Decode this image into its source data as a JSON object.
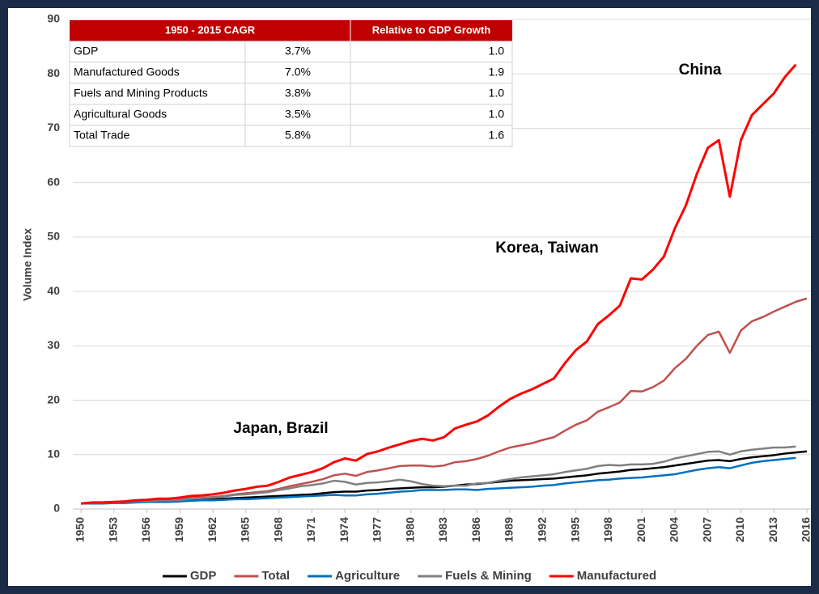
{
  "chart_data": {
    "type": "line",
    "y_label": "Volume Index",
    "x": [
      1950,
      1951,
      1952,
      1953,
      1954,
      1955,
      1956,
      1957,
      1958,
      1959,
      1960,
      1961,
      1962,
      1963,
      1964,
      1965,
      1966,
      1967,
      1968,
      1969,
      1970,
      1971,
      1972,
      1973,
      1974,
      1975,
      1976,
      1977,
      1978,
      1979,
      1980,
      1981,
      1982,
      1983,
      1984,
      1985,
      1986,
      1987,
      1988,
      1989,
      1990,
      1991,
      1992,
      1993,
      1994,
      1995,
      1996,
      1997,
      1998,
      1999,
      2000,
      2001,
      2002,
      2003,
      2004,
      2005,
      2006,
      2007,
      2008,
      2009,
      2010,
      2011,
      2012,
      2013,
      2014,
      2015,
      2016
    ],
    "xlim": [
      1950,
      2016
    ],
    "xticks": [
      1950,
      1953,
      1956,
      1959,
      1962,
      1965,
      1968,
      1971,
      1974,
      1977,
      1980,
      1983,
      1986,
      1989,
      1992,
      1995,
      1998,
      2001,
      2004,
      2007,
      2010,
      2013,
      2016
    ],
    "ylim": [
      0,
      90
    ],
    "yticks": [
      0,
      10,
      20,
      30,
      40,
      50,
      60,
      70,
      80,
      90
    ],
    "grid": true,
    "legend": "bottom",
    "series": [
      {
        "name": "GDP",
        "color": "#000000",
        "values": [
          1.0,
          1.1,
          1.1,
          1.2,
          1.2,
          1.3,
          1.4,
          1.4,
          1.5,
          1.5,
          1.6,
          1.7,
          1.8,
          1.9,
          2.0,
          2.1,
          2.2,
          2.3,
          2.4,
          2.5,
          2.6,
          2.7,
          2.9,
          3.1,
          3.2,
          3.2,
          3.4,
          3.5,
          3.7,
          3.8,
          3.9,
          4.0,
          4.0,
          4.1,
          4.3,
          4.5,
          4.6,
          4.8,
          5.0,
          5.2,
          5.3,
          5.4,
          5.5,
          5.6,
          5.8,
          6.0,
          6.2,
          6.5,
          6.7,
          6.9,
          7.2,
          7.3,
          7.5,
          7.7,
          8.0,
          8.3,
          8.6,
          8.9,
          9.0,
          8.8,
          9.2,
          9.5,
          9.7,
          9.9,
          10.2,
          10.4,
          10.6
        ]
      },
      {
        "name": "Total",
        "color": "#c0504d",
        "values": [
          1.0,
          1.1,
          1.1,
          1.2,
          1.3,
          1.4,
          1.5,
          1.6,
          1.6,
          1.8,
          2.0,
          2.1,
          2.2,
          2.4,
          2.7,
          2.9,
          3.1,
          3.3,
          3.7,
          4.2,
          4.6,
          5.0,
          5.5,
          6.2,
          6.5,
          6.1,
          6.8,
          7.1,
          7.5,
          7.9,
          8.0,
          8.0,
          7.8,
          8.0,
          8.6,
          8.8,
          9.2,
          9.8,
          10.6,
          11.3,
          11.7,
          12.1,
          12.7,
          13.2,
          14.4,
          15.5,
          16.3,
          17.9,
          18.7,
          19.6,
          21.7,
          21.6,
          22.4,
          23.6,
          25.9,
          27.6,
          30.0,
          32.0,
          32.6,
          28.7,
          32.8,
          34.5,
          35.3,
          36.3,
          37.2,
          38.1,
          38.7
        ]
      },
      {
        "name": "Agriculture",
        "color": "#0070c0",
        "values": [
          1.0,
          1.0,
          1.0,
          1.1,
          1.1,
          1.2,
          1.3,
          1.3,
          1.3,
          1.4,
          1.5,
          1.6,
          1.6,
          1.7,
          1.8,
          1.8,
          1.9,
          2.0,
          2.1,
          2.2,
          2.3,
          2.4,
          2.5,
          2.6,
          2.5,
          2.5,
          2.7,
          2.8,
          3.0,
          3.2,
          3.3,
          3.5,
          3.5,
          3.5,
          3.6,
          3.6,
          3.5,
          3.7,
          3.8,
          3.9,
          4.0,
          4.1,
          4.3,
          4.4,
          4.7,
          4.9,
          5.1,
          5.3,
          5.4,
          5.6,
          5.7,
          5.8,
          6.0,
          6.2,
          6.4,
          6.8,
          7.2,
          7.5,
          7.7,
          7.5,
          8.0,
          8.5,
          8.8,
          9.0,
          9.2,
          9.4,
          null
        ]
      },
      {
        "name": "Fuels & Mining",
        "color": "#808080",
        "values": [
          1.0,
          1.1,
          1.1,
          1.2,
          1.3,
          1.4,
          1.5,
          1.6,
          1.6,
          1.7,
          1.9,
          2.0,
          2.1,
          2.3,
          2.6,
          2.7,
          2.9,
          3.1,
          3.5,
          3.8,
          4.2,
          4.4,
          4.7,
          5.2,
          5.0,
          4.5,
          4.8,
          4.9,
          5.1,
          5.4,
          5.1,
          4.6,
          4.3,
          4.2,
          4.3,
          4.3,
          4.7,
          4.8,
          5.2,
          5.5,
          5.8,
          6.0,
          6.2,
          6.4,
          6.8,
          7.1,
          7.4,
          7.9,
          8.1,
          8.0,
          8.2,
          8.2,
          8.3,
          8.7,
          9.3,
          9.7,
          10.1,
          10.5,
          10.6,
          10.0,
          10.6,
          10.9,
          11.1,
          11.3,
          11.3,
          11.5,
          null
        ]
      },
      {
        "name": "Manufactured",
        "color": "#ff0000",
        "values": [
          1.0,
          1.2,
          1.2,
          1.3,
          1.4,
          1.6,
          1.7,
          1.9,
          1.9,
          2.1,
          2.4,
          2.5,
          2.7,
          3.0,
          3.4,
          3.7,
          4.1,
          4.3,
          5.0,
          5.8,
          6.3,
          6.8,
          7.5,
          8.6,
          9.3,
          8.9,
          10.1,
          10.6,
          11.3,
          11.9,
          12.5,
          12.9,
          12.6,
          13.2,
          14.8,
          15.5,
          16.1,
          17.2,
          18.8,
          20.2,
          21.2,
          22.0,
          23.0,
          24.0,
          26.8,
          29.2,
          30.8,
          34.0,
          35.6,
          37.4,
          42.4,
          42.2,
          44.0,
          46.4,
          51.6,
          55.8,
          61.6,
          66.4,
          67.8,
          57.4,
          67.8,
          72.4,
          74.4,
          76.4,
          79.4,
          81.7,
          null
        ]
      }
    ],
    "annotations": [
      "China",
      "Korea, Taiwan",
      "Japan, Brazil"
    ],
    "table": {
      "header": [
        "1950 - 2015 CAGR",
        "Relative to GDP Growth"
      ],
      "rows": [
        [
          "GDP",
          "3.7%",
          "1.0"
        ],
        [
          "Manufactured Goods",
          "7.0%",
          "1.9"
        ],
        [
          "Fuels and Mining Products",
          "3.8%",
          "1.0"
        ],
        [
          "Agricultural Goods",
          "3.5%",
          "1.0"
        ],
        [
          "Total Trade",
          "5.8%",
          "1.6"
        ]
      ]
    }
  }
}
